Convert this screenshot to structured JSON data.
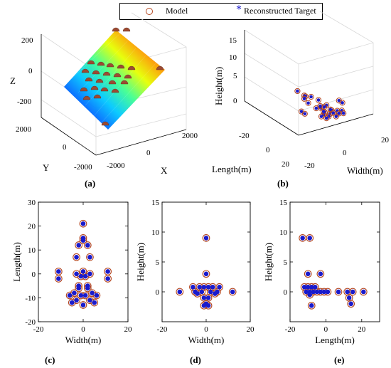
{
  "legend": {
    "model_label": "Model",
    "target_label": "Reconstructed Target",
    "model_color": "#b4461f",
    "target_color": "#1a1acc"
  },
  "panel_labels": [
    "(a)",
    "(b)",
    "(c)",
    "(d)",
    "(e)"
  ],
  "chart_data": [
    {
      "id": "a",
      "type": "surface3d",
      "axes": {
        "x": {
          "label": "X",
          "ticks": [
            "-2000",
            "0",
            "2000"
          ]
        },
        "y": {
          "label": "Y",
          "ticks": [
            "2000",
            "0",
            "-2000"
          ]
        },
        "z": {
          "label": "Z",
          "ticks": [
            "200",
            "0",
            "-200"
          ]
        }
      },
      "colormap": "jet",
      "grid": true
    },
    {
      "id": "b",
      "type": "scatter3d",
      "axes": {
        "x": {
          "label": "Width(m)",
          "ticks": [
            "20",
            "0",
            "-20"
          ]
        },
        "y": {
          "label": "Length(m)",
          "ticks": [
            "20",
            "0",
            "-20"
          ]
        },
        "z": {
          "label": "Height(m)",
          "ticks": [
            "15",
            "10",
            "5",
            "0"
          ]
        }
      },
      "grid": true
    },
    {
      "id": "c",
      "type": "scatter",
      "xlabel": "Width(m)",
      "ylabel": "Length(m)",
      "xlim": [
        -20,
        20
      ],
      "ylim": [
        -20,
        30
      ],
      "xticks": [
        -20,
        0,
        20
      ],
      "yticks": [
        -20,
        -10,
        0,
        10,
        20,
        30
      ],
      "model": [
        [
          0,
          21
        ],
        [
          0,
          15
        ],
        [
          0,
          14
        ],
        [
          2,
          12
        ],
        [
          -2,
          12
        ],
        [
          -3,
          7
        ],
        [
          3,
          7
        ],
        [
          -11,
          1
        ],
        [
          11,
          1
        ],
        [
          -11,
          -2
        ],
        [
          11,
          -2
        ],
        [
          -3,
          0
        ],
        [
          3,
          0
        ],
        [
          -1,
          -1
        ],
        [
          1,
          -1
        ],
        [
          0,
          1
        ],
        [
          -2,
          -6
        ],
        [
          2,
          -6
        ],
        [
          -4,
          -8
        ],
        [
          4,
          -8
        ],
        [
          -6,
          -9
        ],
        [
          6,
          -9
        ],
        [
          -1,
          -9
        ],
        [
          1,
          -9
        ],
        [
          -3,
          -11
        ],
        [
          3,
          -11
        ],
        [
          -5,
          -12
        ],
        [
          5,
          -12
        ],
        [
          0,
          -13
        ],
        [
          -2,
          -5
        ],
        [
          2,
          -5
        ]
      ],
      "target": [
        [
          0,
          21
        ],
        [
          0,
          15
        ],
        [
          0,
          14
        ],
        [
          2,
          12
        ],
        [
          -2,
          12
        ],
        [
          -3,
          7
        ],
        [
          3,
          7
        ],
        [
          -11,
          1
        ],
        [
          11,
          1
        ],
        [
          -11,
          -2
        ],
        [
          11,
          -2
        ],
        [
          -3,
          0
        ],
        [
          3,
          0
        ],
        [
          -1,
          -1
        ],
        [
          1,
          -1
        ],
        [
          0,
          1
        ],
        [
          -2,
          -6
        ],
        [
          2,
          -6
        ],
        [
          -4,
          -8
        ],
        [
          4,
          -8
        ],
        [
          -6,
          -9
        ],
        [
          6,
          -9
        ],
        [
          -1,
          -9
        ],
        [
          1,
          -9
        ],
        [
          -3,
          -11
        ],
        [
          3,
          -11
        ],
        [
          -5,
          -12
        ],
        [
          5,
          -12
        ],
        [
          0,
          -13
        ],
        [
          -2,
          -5
        ],
        [
          2,
          -5
        ]
      ]
    },
    {
      "id": "d",
      "type": "scatter",
      "xlabel": "Width(m)",
      "ylabel": "Height(m)",
      "xlim": [
        -20,
        20
      ],
      "ylim": [
        -5,
        15
      ],
      "xticks": [
        -20,
        0,
        20
      ],
      "yticks": [
        0,
        5,
        10,
        15
      ],
      "model": [
        [
          0,
          9
        ],
        [
          0,
          3
        ],
        [
          -12,
          0
        ],
        [
          12,
          0
        ],
        [
          -6,
          0.8
        ],
        [
          -3,
          0.8
        ],
        [
          -1,
          0.8
        ],
        [
          1,
          0.8
        ],
        [
          3,
          0.8
        ],
        [
          6,
          0.8
        ],
        [
          -5,
          0
        ],
        [
          -2,
          0
        ],
        [
          2,
          0
        ],
        [
          5,
          0
        ],
        [
          -4,
          -0.3
        ],
        [
          4,
          -0.3
        ],
        [
          -1,
          -1
        ],
        [
          1,
          -1
        ],
        [
          0,
          -2
        ],
        [
          -1,
          -2.3
        ],
        [
          1,
          -2.3
        ]
      ],
      "target": [
        [
          0,
          9
        ],
        [
          0,
          3
        ],
        [
          -12,
          0
        ],
        [
          12,
          0
        ],
        [
          -6,
          0.8
        ],
        [
          -3,
          0.8
        ],
        [
          -1,
          0.8
        ],
        [
          1,
          0.8
        ],
        [
          3,
          0.8
        ],
        [
          6,
          0.8
        ],
        [
          -5,
          0
        ],
        [
          -2,
          0
        ],
        [
          2,
          0
        ],
        [
          5,
          0
        ],
        [
          -4,
          -0.3
        ],
        [
          4,
          -0.3
        ],
        [
          -1,
          -1
        ],
        [
          1,
          -1
        ],
        [
          0,
          -2
        ],
        [
          -1,
          -2.3
        ],
        [
          1,
          -2.3
        ]
      ]
    },
    {
      "id": "e",
      "type": "scatter",
      "xlabel": "Length(m)",
      "ylabel": "Height(m)",
      "xlim": [
        -20,
        30
      ],
      "ylim": [
        -5,
        15
      ],
      "xticks": [
        -20,
        0,
        20
      ],
      "yticks": [
        0,
        5,
        10,
        15
      ],
      "model": [
        [
          -13,
          9
        ],
        [
          -9,
          9
        ],
        [
          -10,
          3
        ],
        [
          -3,
          3
        ],
        [
          -12,
          0.8
        ],
        [
          -10,
          0.8
        ],
        [
          -8,
          0.8
        ],
        [
          -6,
          0.8
        ],
        [
          -11,
          0
        ],
        [
          -9,
          0
        ],
        [
          -7,
          0
        ],
        [
          -5,
          0
        ],
        [
          -3,
          0
        ],
        [
          -1,
          0
        ],
        [
          1,
          0
        ],
        [
          7,
          0
        ],
        [
          12,
          0
        ],
        [
          15,
          0
        ],
        [
          21,
          0
        ],
        [
          -9,
          -0.5
        ],
        [
          -8,
          -2.3
        ],
        [
          13,
          -1
        ],
        [
          14,
          -2
        ]
      ],
      "target": [
        [
          -13,
          9
        ],
        [
          -9,
          9
        ],
        [
          -10,
          3
        ],
        [
          -3,
          3
        ],
        [
          -12,
          0.8
        ],
        [
          -10,
          0.8
        ],
        [
          -8,
          0.8
        ],
        [
          -6,
          0.8
        ],
        [
          -11,
          0
        ],
        [
          -9,
          0
        ],
        [
          -7,
          0
        ],
        [
          -5,
          0
        ],
        [
          -3,
          0
        ],
        [
          -1,
          0
        ],
        [
          1,
          0
        ],
        [
          7,
          0
        ],
        [
          12,
          0
        ],
        [
          15,
          0
        ],
        [
          21,
          0
        ],
        [
          -9,
          -0.5
        ],
        [
          -8,
          -2.3
        ],
        [
          13,
          -1
        ],
        [
          14,
          -2
        ]
      ]
    }
  ]
}
